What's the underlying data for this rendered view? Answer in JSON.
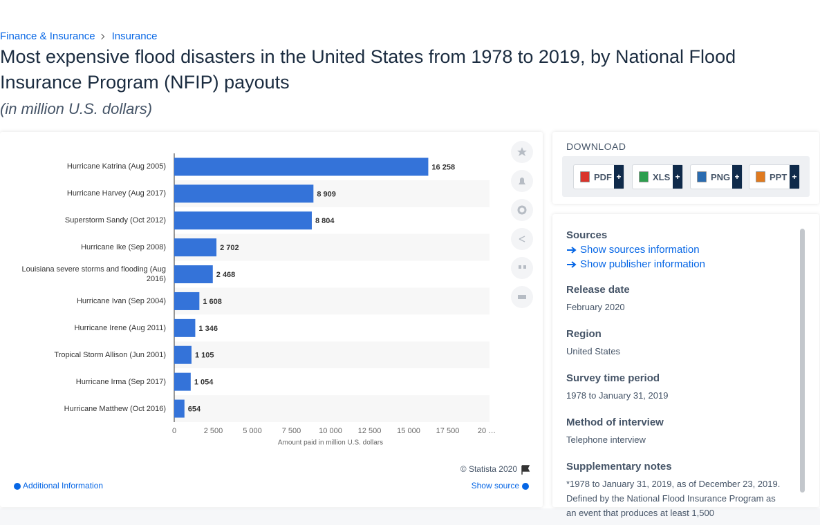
{
  "breadcrumb": [
    "Finance & Insurance",
    "Insurance"
  ],
  "title": "Most expensive flood disasters in the United States from 1978 to 2019, by National Flood Insurance Program (NFIP) payouts",
  "subtitle": "(in million U.S. dollars)",
  "chart_data": {
    "type": "bar",
    "orientation": "horizontal",
    "categories": [
      "Hurricane Katrina (Aug 2005)",
      "Hurricane Harvey (Aug 2017)",
      "Superstorm Sandy (Oct 2012)",
      "Hurricane Ike (Sep 2008)",
      "Louisiana severe storms and flooding (Aug 2016)",
      "Hurricane Ivan (Sep 2004)",
      "Hurricane Irene (Aug 2011)",
      "Tropical Storm Allison (Jun 2001)",
      "Hurricane Irma (Sep 2017)",
      "Hurricane Matthew (Oct 2016)"
    ],
    "values": [
      16258,
      8909,
      8804,
      2702,
      2468,
      1608,
      1346,
      1105,
      1054,
      654
    ],
    "value_labels": [
      "16 258",
      "8 909",
      "8 804",
      "2 702",
      "2 468",
      "1 608",
      "1 346",
      "1 105",
      "1 054",
      "654"
    ],
    "color": "#3473d9",
    "xlim": [
      0,
      20000
    ],
    "xticks": [
      0,
      {
        "value": 2500,
        "label": "2 500"
      },
      {
        "value": 5000,
        "label": "5 000"
      },
      {
        "value": 7500,
        "label": "7 500"
      },
      {
        "value": 10000,
        "label": "10 000"
      },
      {
        "value": 12500,
        "label": "12 500"
      },
      {
        "value": 15000,
        "label": "15 000"
      },
      {
        "value": 17500,
        "label": "17 500"
      },
      {
        "value": 20000,
        "label": "20 …"
      }
    ],
    "xlabel": "Amount paid in million U.S. dollars",
    "grid": false
  },
  "chart_footer": {
    "copyright": "© Statista 2020",
    "additional_info": "Additional Information",
    "show_source": "Show source"
  },
  "download": {
    "title": "DOWNLOAD",
    "formats": [
      "PDF",
      "XLS",
      "PNG",
      "PPT"
    ],
    "more": "+"
  },
  "details": {
    "sources_title": "Sources",
    "links": [
      "Show sources information",
      "Show publisher information"
    ],
    "items": [
      {
        "label": "Release date",
        "value": "February 2020"
      },
      {
        "label": "Region",
        "value": "United States"
      },
      {
        "label": "Survey time period",
        "value": "1978 to January 31, 2019"
      },
      {
        "label": "Method of interview",
        "value": "Telephone interview"
      },
      {
        "label": "Supplementary notes",
        "value": "*1978 to January 31, 2019, as of December 23, 2019. Defined by the National Flood Insurance Program as an event that produces at least 1,500"
      }
    ]
  }
}
